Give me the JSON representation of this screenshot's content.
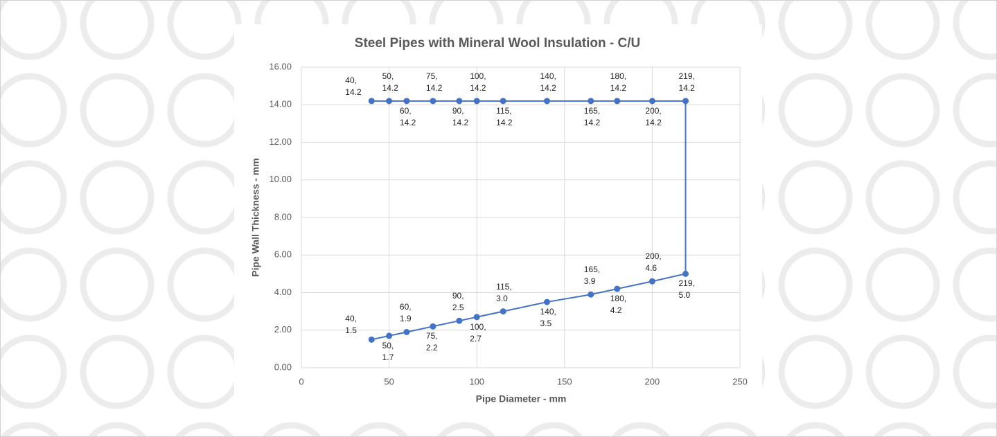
{
  "chart_data": {
    "type": "scatter",
    "title": "Steel Pipes with Mineral Wool Insulation - C/U",
    "x_label": "Pipe Diameter - mm",
    "y_label": "Pipe Wall Thickness - mm",
    "color": "#4472c4",
    "x": [
      40,
      50,
      60,
      75,
      90,
      100,
      115,
      140,
      165,
      180,
      200,
      219,
      219,
      200,
      180,
      165,
      140,
      115,
      100,
      90,
      75,
      60,
      50,
      40
    ],
    "values": [
      1.5,
      1.7,
      1.9,
      2.2,
      2.5,
      2.7,
      3.0,
      3.5,
      3.9,
      4.2,
      4.6,
      5.0,
      14.2,
      14.2,
      14.2,
      14.2,
      14.2,
      14.2,
      14.2,
      14.2,
      14.2,
      14.2,
      14.2,
      14.2
    ],
    "value_labels": [
      "40, 1.5",
      "50, 1.7",
      "60, 1.9",
      "75, 2.2",
      "90, 2.5",
      "100, 2.7",
      "115, 3.0",
      "140, 3.5",
      "165, 3.9",
      "180, 4.2",
      "200, 4.6",
      "219, 5.0",
      "219, 14.2",
      "200, 14.2",
      "180, 14.2",
      "165, 14.2",
      "140, 14.2",
      "115, 14.2",
      "100, 14.2",
      "90, 14.2",
      "75, 14.2",
      "60, 14.2",
      "50, 14.2",
      "40, 14.2"
    ],
    "xlim": [
      0,
      250
    ],
    "xticks": [
      0,
      50,
      100,
      150,
      200,
      250
    ],
    "ylim": [
      0,
      16
    ],
    "yticks": [
      {
        "value": 0,
        "label": "0.00"
      },
      {
        "value": 2,
        "label": "2.00"
      },
      {
        "value": 4,
        "label": "4.00"
      },
      {
        "value": 6,
        "label": "6.00"
      },
      {
        "value": 8,
        "label": "8.00"
      },
      {
        "value": 10,
        "label": "10.00"
      },
      {
        "value": 12,
        "label": "12.00"
      },
      {
        "value": 14,
        "label": "14.00"
      },
      {
        "value": 16,
        "label": "16.00"
      }
    ],
    "grid": true
  }
}
